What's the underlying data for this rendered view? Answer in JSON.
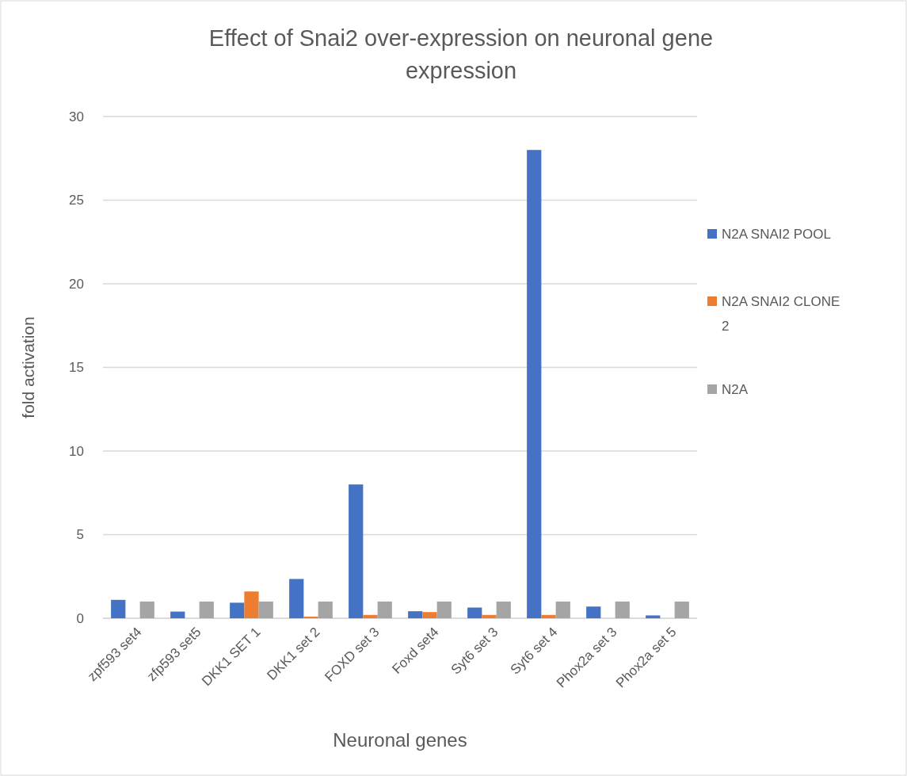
{
  "chart_data": {
    "type": "bar",
    "title": "Effect of Snai2 over-expression on neuronal  gene expression",
    "xlabel": "Neuronal genes",
    "ylabel": "fold activation",
    "categories": [
      "zpf593 set4",
      "zfp593 set5",
      "DKK1 SET 1",
      "DKK1 set 2",
      "FOXD set 3",
      "Foxd set4",
      "Syt6 set 3",
      "Syt6 set 4",
      "Phox2a set 3",
      "Phox2a set 5"
    ],
    "series": [
      {
        "name": "N2A SNAI2 POOL",
        "color": "#4472c4",
        "values": [
          1.1,
          0.4,
          0.93,
          2.35,
          8.0,
          0.42,
          0.64,
          28.0,
          0.7,
          0.17
        ]
      },
      {
        "name": "N2A SNAI2 CLONE 2",
        "color": "#ed7d31",
        "values": [
          0,
          0,
          1.6,
          0.1,
          0.2,
          0.37,
          0.2,
          0.2,
          0,
          0
        ]
      },
      {
        "name": "N2A",
        "color": "#a5a5a5",
        "values": [
          1,
          1,
          1,
          1,
          1,
          1,
          1,
          1,
          1,
          1
        ]
      }
    ],
    "ylim": [
      0,
      30
    ],
    "yticks": [
      0,
      5,
      10,
      15,
      20,
      25,
      30
    ],
    "grid": "y",
    "legend": "right"
  }
}
